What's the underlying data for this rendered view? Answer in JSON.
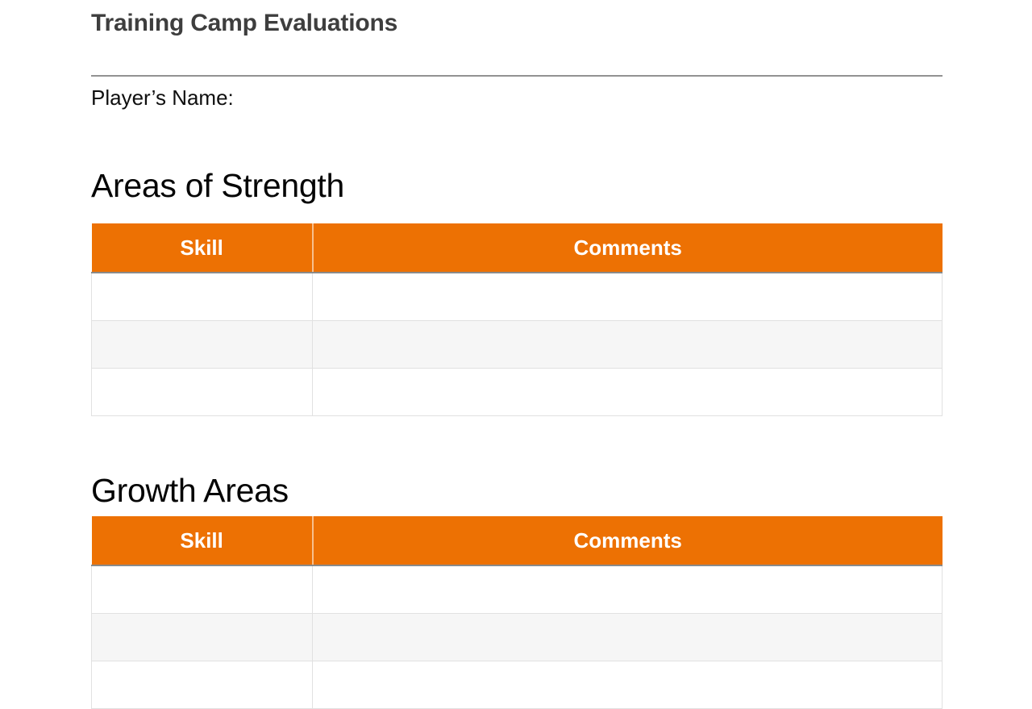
{
  "doc": {
    "title": "Training Camp Evaluations",
    "player_name_label": "Player’s Name:"
  },
  "sections": [
    {
      "heading": "Areas of Strength",
      "table": {
        "columns": [
          "Skill",
          "Comments"
        ],
        "rows": [
          [
            "",
            ""
          ],
          [
            "",
            ""
          ],
          [
            "",
            ""
          ]
        ]
      }
    },
    {
      "heading": "Growth Areas",
      "table": {
        "columns": [
          "Skill",
          "Comments"
        ],
        "rows": [
          [
            "",
            ""
          ],
          [
            "",
            ""
          ],
          [
            "",
            ""
          ]
        ]
      }
    }
  ],
  "colors": {
    "table_header_background": "#ED7103",
    "table_header_text": "#FFFFFF",
    "table_header_bottom_border": "#8A8A8A",
    "zebra_row_background": "#F6F6F6",
    "cell_border": "#E1E1E1",
    "title_text": "#3E3E3E",
    "body_text": "#0F0F0F",
    "divider_rule": "#929292",
    "page_background": "#FFFFFF"
  }
}
